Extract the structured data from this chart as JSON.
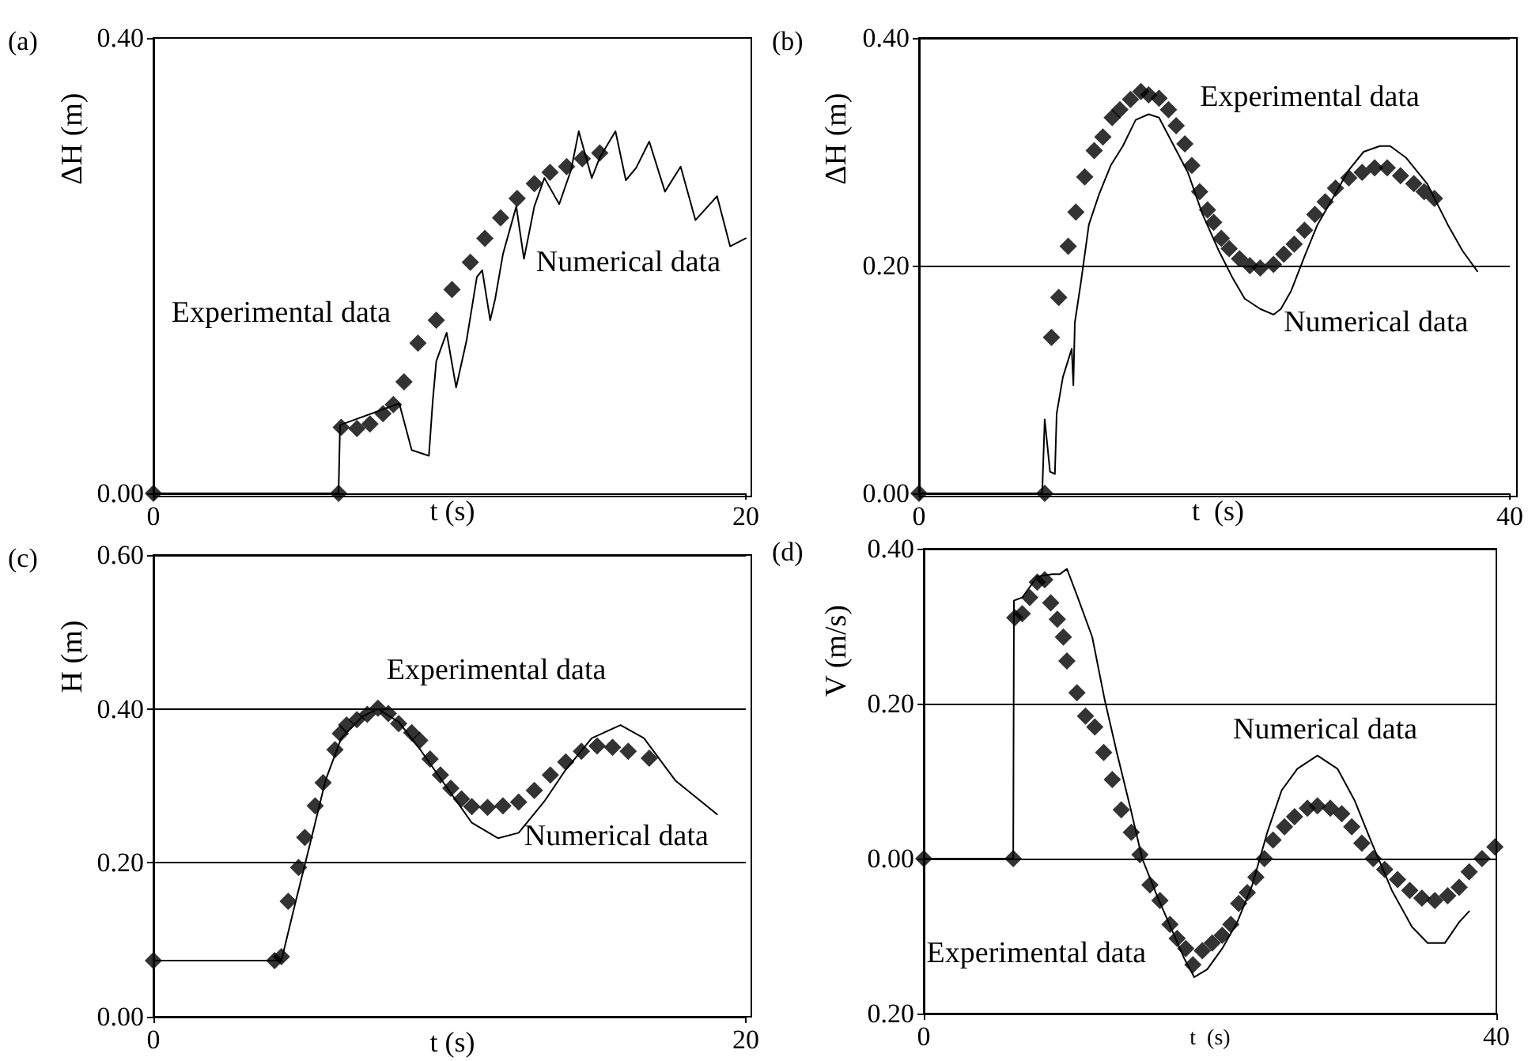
{
  "chart_data": [
    {
      "type": "line",
      "title": "(a)",
      "xlabel": "t (s)",
      "ylabel": "ΔH (m)",
      "xlim": [
        0,
        20
      ],
      "xticks": [
        0,
        20
      ],
      "ylim": [
        0,
        0.4
      ],
      "yticks": [
        {
          "value": 0,
          "label": "0.00"
        },
        {
          "value": 0.4,
          "label": "0.40"
        }
      ],
      "grid": false,
      "series": [
        {
          "name": "Experimental data",
          "type": "scatter",
          "marker": "diamond",
          "color": "#000000",
          "x": [
            0,
            6.25,
            6.34,
            6.87,
            7.31,
            7.75,
            8.1,
            8.46,
            8.93,
            9.55,
            10.08,
            10.7,
            11.19,
            11.72,
            12.28,
            12.86,
            13.39,
            13.95,
            14.48,
            15.07
          ],
          "values": [
            0,
            0,
            0.058,
            0.057,
            0.061,
            0.07,
            0.078,
            0.098,
            0.132,
            0.152,
            0.179,
            0.203,
            0.224,
            0.242,
            0.259,
            0.272,
            0.282,
            0.287,
            0.294,
            0.299
          ]
        },
        {
          "name": "Numerical data",
          "marker": "none",
          "color": "#000000",
          "x": [
            0,
            6.25,
            6.3,
            8.3,
            8.72,
            9.3,
            9.43,
            9.55,
            9.9,
            10.22,
            10.57,
            10.92,
            11.1,
            11.37,
            11.54,
            11.8,
            12.25,
            12.51,
            12.86,
            13.2,
            13.7,
            14.1,
            14.36,
            14.8,
            15.07,
            15.6,
            15.95,
            16.3,
            16.74,
            17.27,
            17.8,
            18.3,
            19.03,
            19.47,
            20
          ],
          "values": [
            0,
            0,
            0.06,
            0.079,
            0.038,
            0.033,
            0.081,
            0.116,
            0.141,
            0.093,
            0.134,
            0.19,
            0.196,
            0.152,
            0.171,
            0.21,
            0.252,
            0.206,
            0.252,
            0.277,
            0.254,
            0.284,
            0.318,
            0.277,
            0.295,
            0.318,
            0.275,
            0.286,
            0.309,
            0.265,
            0.287,
            0.24,
            0.261,
            0.217,
            0.224
          ]
        }
      ]
    },
    {
      "type": "line",
      "title": "(b)",
      "xlabel": "t  (s)",
      "ylabel": "ΔH (m)",
      "xlim": [
        0,
        40
      ],
      "xticks": [
        0,
        40
      ],
      "ylim": [
        0,
        0.4
      ],
      "yticks": [
        {
          "value": 0,
          "label": "0.00"
        },
        {
          "value": 0.2,
          "label": "0.20"
        },
        {
          "value": 0.4,
          "label": "0.40"
        }
      ],
      "grid": "y",
      "series": [
        {
          "name": "Experimental data",
          "type": "scatter",
          "marker": "diamond",
          "color": "#000000",
          "x": [
            0,
            8.51,
            8.97,
            9.46,
            10.1,
            10.62,
            11.22,
            11.86,
            12.45,
            13.08,
            13.6,
            14.32,
            15.02,
            15.55,
            16.25,
            16.89,
            17.41,
            18.0,
            18.47,
            19.0,
            19.53,
            19.95,
            20.47,
            21.0,
            21.7,
            22.4,
            23.1,
            24.0,
            24.7,
            25.4,
            26.1,
            26.8,
            27.5,
            28.2,
            29.1,
            30.0,
            30.85,
            31.7,
            32.6,
            33.5,
            34.2,
            34.9
          ],
          "values": [
            0,
            0,
            0.137,
            0.172,
            0.217,
            0.247,
            0.278,
            0.301,
            0.313,
            0.33,
            0.337,
            0.346,
            0.353,
            0.35,
            0.347,
            0.337,
            0.323,
            0.307,
            0.288,
            0.265,
            0.249,
            0.238,
            0.224,
            0.215,
            0.206,
            0.2,
            0.198,
            0.201,
            0.21,
            0.219,
            0.231,
            0.245,
            0.256,
            0.268,
            0.277,
            0.282,
            0.286,
            0.286,
            0.279,
            0.272,
            0.265,
            0.259
          ]
        },
        {
          "name": "Numerical data",
          "marker": "none",
          "color": "#000000",
          "x": [
            0,
            8.34,
            8.51,
            8.87,
            9.2,
            9.32,
            9.74,
            10.34,
            10.45,
            10.55,
            10.98,
            11.5,
            12.2,
            12.98,
            13.8,
            14.67,
            15.55,
            16.25,
            17.1,
            18.2,
            19.2,
            20.3,
            21.2,
            22.05,
            23.1,
            24.0,
            24.5,
            25.2,
            26.1,
            26.98,
            28.0,
            29.1,
            30.1,
            31.2,
            31.9,
            32.96,
            34.4,
            35.8,
            36.8,
            37.8
          ],
          "values": [
            0,
            0,
            0.065,
            0.019,
            0.017,
            0.07,
            0.102,
            0.127,
            0.095,
            0.15,
            0.187,
            0.236,
            0.263,
            0.288,
            0.305,
            0.328,
            0.333,
            0.33,
            0.309,
            0.282,
            0.245,
            0.213,
            0.19,
            0.171,
            0.162,
            0.157,
            0.162,
            0.178,
            0.208,
            0.236,
            0.259,
            0.284,
            0.3,
            0.305,
            0.305,
            0.295,
            0.272,
            0.236,
            0.213,
            0.195
          ]
        }
      ]
    },
    {
      "type": "line",
      "title": "(c)",
      "xlabel": "t (s)",
      "ylabel": "H (m)",
      "xlim": [
        0,
        20
      ],
      "xticks": [
        0,
        20
      ],
      "ylim": [
        0,
        0.6
      ],
      "yticks": [
        {
          "value": 0,
          "label": "0.00"
        },
        {
          "value": 0.2,
          "label": "0.20"
        },
        {
          "value": 0.4,
          "label": "0.40"
        },
        {
          "value": 0.6,
          "label": "0.60"
        }
      ],
      "grid": "y",
      "series": [
        {
          "name": "Experimental data",
          "type": "scatter",
          "marker": "diamond",
          "color": "#000000",
          "x": [
            0,
            4.09,
            4.32,
            4.55,
            4.9,
            5.11,
            5.46,
            5.73,
            6.13,
            6.31,
            6.52,
            6.87,
            7.22,
            7.58,
            7.93,
            8.28,
            8.72,
            8.99,
            9.34,
            9.69,
            10.04,
            10.4,
            10.75,
            11.28,
            11.8,
            12.33,
            12.86,
            13.4,
            13.92,
            14.45,
            14.98,
            15.5,
            16.03,
            16.74
          ],
          "values": [
            0.073,
            0.073,
            0.078,
            0.15,
            0.194,
            0.233,
            0.274,
            0.304,
            0.347,
            0.368,
            0.379,
            0.386,
            0.393,
            0.401,
            0.394,
            0.381,
            0.369,
            0.359,
            0.335,
            0.314,
            0.297,
            0.283,
            0.273,
            0.272,
            0.274,
            0.279,
            0.294,
            0.314,
            0.331,
            0.345,
            0.352,
            0.35,
            0.345,
            0.336
          ]
        },
        {
          "name": "Numerical data",
          "marker": "none",
          "color": "#000000",
          "x": [
            0,
            4.32,
            4.76,
            5.29,
            5.81,
            6.34,
            7.05,
            7.58,
            8.28,
            8.99,
            9.87,
            10.75,
            11.63,
            12.33,
            13.2,
            13.92,
            14.8,
            15.77,
            16.56,
            17.62,
            19.03
          ],
          "values": [
            0.073,
            0.073,
            0.143,
            0.225,
            0.307,
            0.362,
            0.39,
            0.4,
            0.383,
            0.348,
            0.3,
            0.252,
            0.232,
            0.239,
            0.28,
            0.321,
            0.362,
            0.379,
            0.362,
            0.307,
            0.263
          ]
        }
      ]
    },
    {
      "type": "line",
      "title": "(d)",
      "xlabel": "t  (s)",
      "ylabel": "V (m/s)",
      "xlim": [
        0,
        40
      ],
      "xticks": [
        0,
        40
      ],
      "ylim": [
        -0.2,
        0.4
      ],
      "yticks": [
        {
          "value": -0.2,
          "label": "0.20"
        },
        {
          "value": 0,
          "label": "0.00"
        },
        {
          "value": 0.2,
          "label": "0.20"
        },
        {
          "value": 0.4,
          "label": "0.40"
        }
      ],
      "grid": "y",
      "series": [
        {
          "name": "Experimental data",
          "type": "scatter",
          "marker": "diamond",
          "color": "#000000",
          "x": [
            0,
            6.25,
            6.36,
            6.88,
            7.4,
            7.93,
            8.45,
            8.87,
            9.33,
            9.75,
            10.0,
            10.7,
            11.3,
            11.95,
            12.57,
            13.17,
            13.8,
            14.5,
            15.1,
            15.8,
            16.5,
            17.2,
            17.7,
            18.3,
            18.8,
            19.46,
            20.15,
            20.85,
            21.45,
            22.0,
            22.6,
            23.2,
            23.8,
            24.4,
            25.2,
            25.9,
            26.8,
            27.5,
            28.4,
            29.2,
            29.9,
            30.6,
            31.4,
            32.2,
            33.1,
            33.95,
            34.8,
            35.7,
            36.6,
            37.4,
            38.1,
            39.0,
            39.9
          ],
          "values": [
            0,
            0,
            0.311,
            0.316,
            0.337,
            0.357,
            0.36,
            0.33,
            0.309,
            0.286,
            0.255,
            0.214,
            0.184,
            0.17,
            0.137,
            0.102,
            0.063,
            0.034,
            0.005,
            -0.034,
            -0.054,
            -0.085,
            -0.103,
            -0.116,
            -0.137,
            -0.119,
            -0.109,
            -0.099,
            -0.085,
            -0.058,
            -0.044,
            -0.024,
            0,
            0.024,
            0.041,
            0.054,
            0.065,
            0.068,
            0.065,
            0.058,
            0.041,
            0.02,
            0,
            -0.014,
            -0.027,
            -0.041,
            -0.051,
            -0.054,
            -0.048,
            -0.037,
            -0.017,
            0,
            0.015
          ]
        },
        {
          "name": "Numerical data",
          "marker": "none",
          "color": "#000000",
          "x": [
            0,
            6.25,
            6.3,
            6.88,
            7.93,
            8.98,
            9.5,
            10.0,
            10.7,
            11.77,
            12.65,
            13.5,
            14.4,
            15.26,
            16.3,
            17.4,
            18.2,
            18.9,
            19.8,
            20.85,
            21.9,
            22.95,
            24.0,
            25.0,
            26.1,
            27.5,
            28.9,
            30.1,
            31.3,
            32.7,
            34.1,
            35.2,
            36.4,
            37.4,
            38.1
          ],
          "values": [
            0,
            0,
            0.333,
            0.337,
            0.364,
            0.367,
            0.367,
            0.374,
            0.34,
            0.286,
            0.204,
            0.136,
            0.068,
            0,
            -0.048,
            -0.095,
            -0.129,
            -0.153,
            -0.143,
            -0.116,
            -0.082,
            -0.034,
            0.034,
            0.088,
            0.116,
            0.133,
            0.116,
            0.075,
            0.02,
            -0.041,
            -0.088,
            -0.109,
            -0.109,
            -0.082,
            -0.068
          ]
        }
      ]
    }
  ]
}
